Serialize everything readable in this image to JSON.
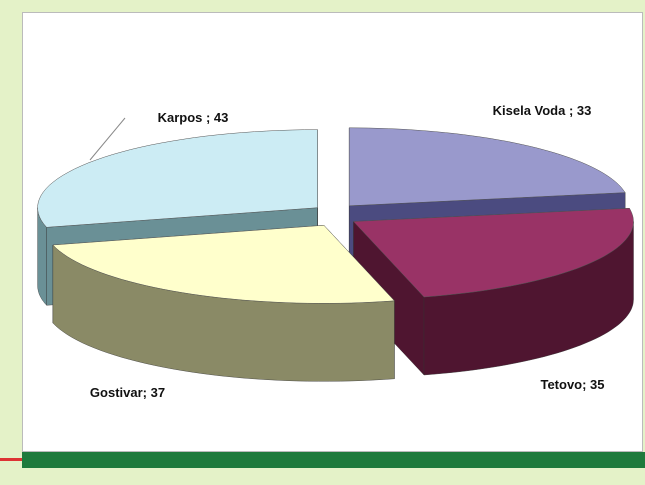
{
  "chart_data": {
    "type": "pie",
    "values": [
      33,
      35,
      37,
      43
    ],
    "value_labels": [
      "Kisela Voda ; 33",
      "Tetovo; 35",
      "Gostivar; 37",
      "Karpos ; 43"
    ],
    "colors": [
      "#9999cc",
      "#993366",
      "#ffffcc",
      "#ccecf4"
    ],
    "side_colors": [
      "#4b4b80",
      "#4f1530",
      "#8a8a66",
      "#6a9096"
    ]
  }
}
